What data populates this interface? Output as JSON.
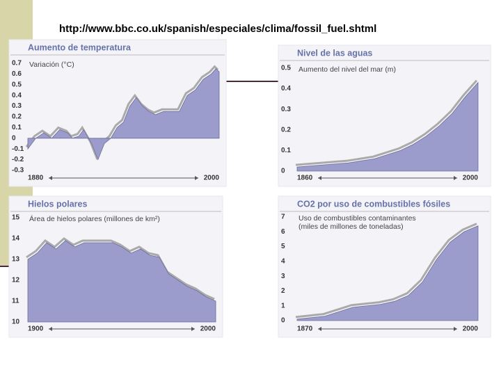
{
  "header": {
    "url": "http://www.bbc.co.uk/spanish/especiales/clima/fossil_fuel.shtml"
  },
  "chart_data": [
    {
      "type": "area",
      "title": "Aumento de temperatura",
      "y_label": [
        "Variación (°C)"
      ],
      "x": [
        1880,
        1885,
        1890,
        1895,
        1900,
        1905,
        1908,
        1912,
        1915,
        1920,
        1924,
        1928,
        1932,
        1936,
        1940,
        1944,
        1948,
        1952,
        1956,
        1960,
        1965,
        1970,
        1975,
        1980,
        1985,
        1990,
        1995,
        1998,
        2000
      ],
      "values": [
        -0.1,
        0.0,
        0.05,
        0.0,
        0.08,
        0.05,
        0.0,
        0.02,
        0.08,
        -0.05,
        -0.2,
        -0.05,
        0.0,
        0.1,
        0.15,
        0.3,
        0.38,
        0.3,
        0.25,
        0.22,
        0.25,
        0.25,
        0.25,
        0.4,
        0.45,
        0.55,
        0.6,
        0.65,
        0.62
      ],
      "xlim": [
        1880,
        2000
      ],
      "xticks": [
        1880,
        2000
      ],
      "ylim": [
        -0.3,
        0.7
      ],
      "yticks": [
        0.7,
        0.6,
        0.5,
        0.4,
        0.3,
        0.2,
        0.1,
        0,
        -0.1,
        -0.2,
        -0.3
      ],
      "color": "#9b9bcc"
    },
    {
      "type": "area",
      "title": "Nivel de las aguas",
      "y_label": [
        "Aumento del nivel del mar (m)"
      ],
      "x": [
        1860,
        1880,
        1900,
        1920,
        1940,
        1950,
        1960,
        1970,
        1980,
        1990,
        2000
      ],
      "values": [
        0.02,
        0.03,
        0.04,
        0.06,
        0.1,
        0.13,
        0.17,
        0.22,
        0.28,
        0.36,
        0.43
      ],
      "xlim": [
        1860,
        2000
      ],
      "xticks": [
        1860,
        2000
      ],
      "ylim": [
        0,
        0.5
      ],
      "yticks": [
        0.5,
        0.4,
        0.3,
        0.2,
        0.1,
        0
      ],
      "color": "#9b9bcc"
    },
    {
      "type": "area",
      "title": "Hielos polares",
      "y_label": [
        "Área de hielos polares (millones de km²)"
      ],
      "x": [
        1900,
        1905,
        1910,
        1915,
        1920,
        1925,
        1930,
        1935,
        1940,
        1945,
        1950,
        1955,
        1960,
        1965,
        1970,
        1975,
        1980,
        1985,
        1990,
        1995,
        2000
      ],
      "values": [
        13,
        13.3,
        13.8,
        13.5,
        13.9,
        13.6,
        13.8,
        13.8,
        13.8,
        13.8,
        13.6,
        13.3,
        13.5,
        13.2,
        13.1,
        12.3,
        12.0,
        11.7,
        11.5,
        11.2,
        11.0
      ],
      "xlim": [
        1900,
        2000
      ],
      "xticks": [
        1900,
        2000
      ],
      "ylim": [
        10,
        15
      ],
      "yticks": [
        15,
        14,
        13,
        12,
        11,
        10
      ],
      "color": "#9b9bcc"
    },
    {
      "type": "area",
      "title": "CO2 por uso de combustibles fósiles",
      "y_label": [
        "Uso de combustibles contaminantes",
        "(miles de millones de toneladas)"
      ],
      "x": [
        1870,
        1890,
        1910,
        1920,
        1930,
        1940,
        1950,
        1960,
        1970,
        1980,
        1990,
        2000
      ],
      "values": [
        0.1,
        0.3,
        0.9,
        1.0,
        1.1,
        1.3,
        1.7,
        2.6,
        4.1,
        5.3,
        6.0,
        6.4
      ],
      "xlim": [
        1870,
        2000
      ],
      "xticks": [
        1870,
        2000
      ],
      "ylim": [
        0,
        7
      ],
      "yticks": [
        7,
        6,
        5,
        4,
        3,
        2,
        1,
        0
      ],
      "color": "#9b9bcc"
    }
  ]
}
